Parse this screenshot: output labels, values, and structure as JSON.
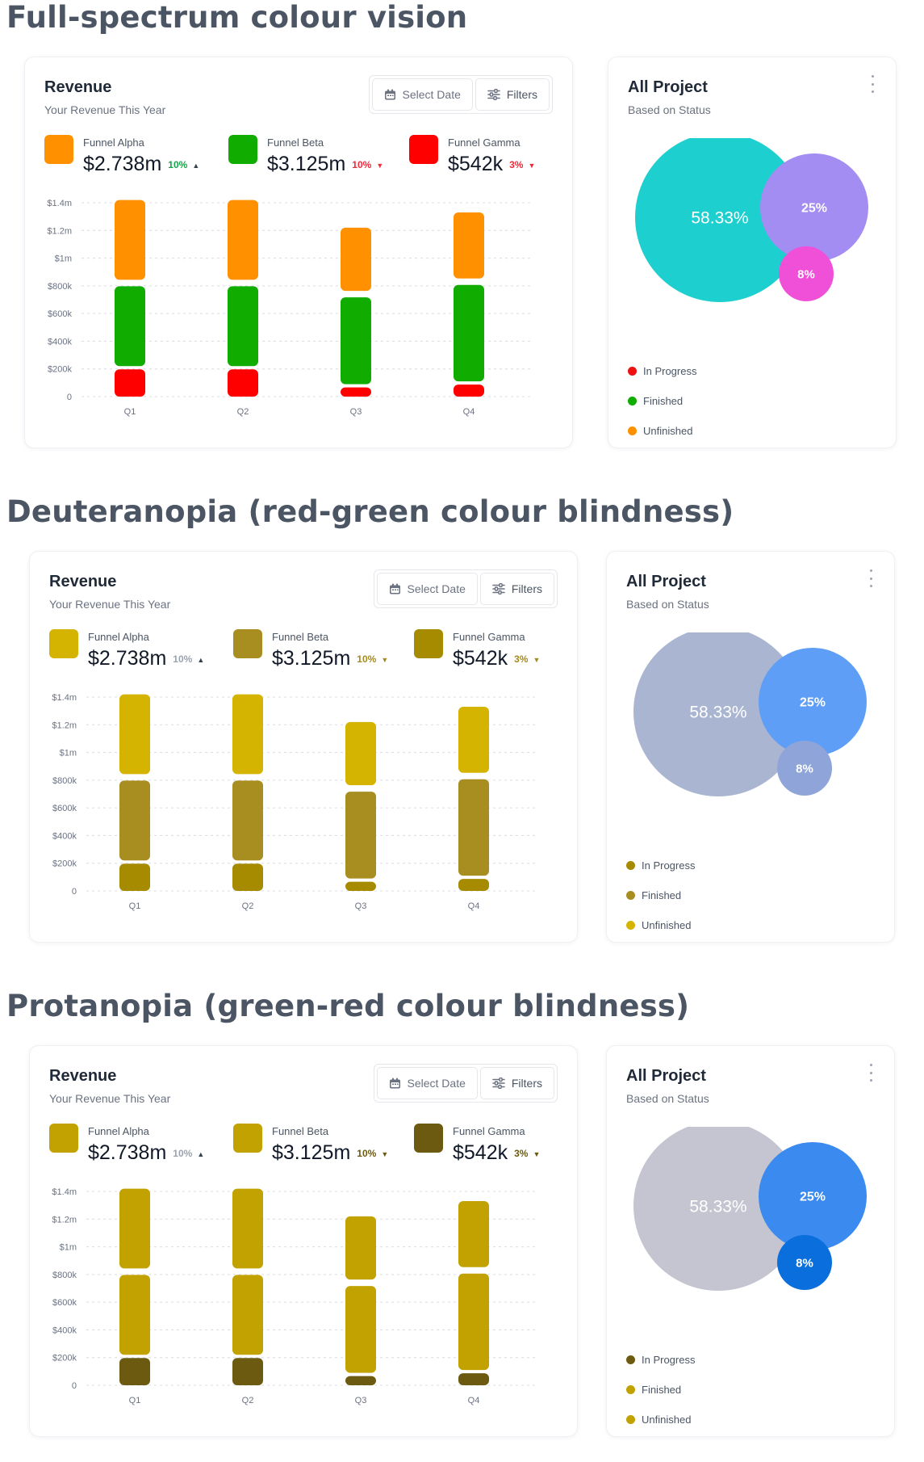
{
  "sections": [
    {
      "heading": "Full-spectrum colour vision",
      "revenue": {
        "title": "Revenue",
        "subtitle": "Your Revenue This Year",
        "select_date_label": "Select Date",
        "filters_label": "Filters",
        "funnels": [
          {
            "name": "Funnel Alpha",
            "value": "$2.738m",
            "change": "10%",
            "direction": "up",
            "change_color": "#16a34a",
            "color": "#ff9000"
          },
          {
            "name": "Funnel Beta",
            "value": "$3.125m",
            "change": "10%",
            "direction": "down",
            "change_color": "#ef2b3a",
            "color": "#10ac00"
          },
          {
            "name": "Funnel Gamma",
            "value": "$542k",
            "change": "3%",
            "direction": "down",
            "change_color": "#ef2b3a",
            "color": "#ff0000"
          }
        ]
      },
      "project": {
        "title": "All Project",
        "subtitle": "Based on Status",
        "bubbles": [
          {
            "label": "58.33%",
            "color": "#1ecfcf"
          },
          {
            "label": "25%",
            "color": "#a38cf2"
          },
          {
            "label": "8%",
            "color": "#f04fd8"
          }
        ],
        "legend": [
          {
            "label": "In Progress",
            "color": "#ee1111"
          },
          {
            "label": "Finished",
            "color": "#10ac00"
          },
          {
            "label": "Unfinished",
            "color": "#ff9000"
          }
        ]
      }
    },
    {
      "heading": "Deuteranopia (red-green colour blindness)",
      "revenue": {
        "title": "Revenue",
        "subtitle": "Your Revenue This Year",
        "select_date_label": "Select Date",
        "filters_label": "Filters",
        "funnels": [
          {
            "name": "Funnel Alpha",
            "value": "$2.738m",
            "change": "10%",
            "direction": "up",
            "change_color": "#9ca3af",
            "color": "#d4b400"
          },
          {
            "name": "Funnel Beta",
            "value": "$3.125m",
            "change": "10%",
            "direction": "down",
            "change_color": "#a38a22",
            "color": "#a88e20"
          },
          {
            "name": "Funnel Gamma",
            "value": "$542k",
            "change": "3%",
            "direction": "down",
            "change_color": "#a38a22",
            "color": "#a68a00"
          }
        ]
      },
      "project": {
        "title": "All Project",
        "subtitle": "Based on Status",
        "bubbles": [
          {
            "label": "58.33%",
            "color": "#a9b5d1"
          },
          {
            "label": "25%",
            "color": "#5f9ef6"
          },
          {
            "label": "8%",
            "color": "#8fa4d8"
          }
        ],
        "legend": [
          {
            "label": "In Progress",
            "color": "#a68a00"
          },
          {
            "label": "Finished",
            "color": "#a88e20"
          },
          {
            "label": "Unfinished",
            "color": "#d4b400"
          }
        ]
      }
    },
    {
      "heading": "Protanopia (green-red colour blindness)",
      "revenue": {
        "title": "Revenue",
        "subtitle": "Your Revenue This Year",
        "select_date_label": "Select Date",
        "filters_label": "Filters",
        "funnels": [
          {
            "name": "Funnel Alpha",
            "value": "$2.738m",
            "change": "10%",
            "direction": "up",
            "change_color": "#9ca3af",
            "color": "#c1a200"
          },
          {
            "name": "Funnel Beta",
            "value": "$3.125m",
            "change": "10%",
            "direction": "down",
            "change_color": "#6b5a10",
            "color": "#c1a200"
          },
          {
            "name": "Funnel Gamma",
            "value": "$542k",
            "change": "3%",
            "direction": "down",
            "change_color": "#6b5a10",
            "color": "#6b5a10"
          }
        ]
      },
      "project": {
        "title": "All Project",
        "subtitle": "Based on Status",
        "bubbles": [
          {
            "label": "58.33%",
            "color": "#c4c5d0"
          },
          {
            "label": "25%",
            "color": "#3a8af0"
          },
          {
            "label": "8%",
            "color": "#0a6fdc"
          }
        ],
        "legend": [
          {
            "label": "In Progress",
            "color": "#6b5a10"
          },
          {
            "label": "Finished",
            "color": "#c1a200"
          },
          {
            "label": "Unfinished",
            "color": "#c1a200"
          }
        ]
      }
    }
  ],
  "chart_data": [
    {
      "type": "bar",
      "stacked": true,
      "categories": [
        "Q1",
        "Q2",
        "Q3",
        "Q4"
      ],
      "y_tick_labels": [
        "0",
        "$200k",
        "$400k",
        "$600k",
        "$800k",
        "$1m",
        "$1.2m",
        "$1.4m"
      ],
      "ylim": [
        0,
        1400000
      ],
      "grid": true,
      "series": [
        {
          "name": "Funnel Gamma",
          "values": [
            220000,
            220000,
            90000,
            110000
          ],
          "color": "#ff0000"
        },
        {
          "name": "Funnel Beta",
          "values": [
            600000,
            600000,
            650000,
            720000
          ],
          "color": "#10ac00"
        },
        {
          "name": "Funnel Alpha",
          "values": [
            600000,
            600000,
            480000,
            500000
          ],
          "color": "#ff9000"
        }
      ]
    },
    {
      "type": "bar",
      "stacked": true,
      "categories": [
        "Q1",
        "Q2",
        "Q3",
        "Q4"
      ],
      "y_tick_labels": [
        "0",
        "$200k",
        "$400k",
        "$600k",
        "$800k",
        "$1m",
        "$1.2m",
        "$1.4m"
      ],
      "ylim": [
        0,
        1400000
      ],
      "grid": true,
      "series": [
        {
          "name": "Funnel Gamma",
          "values": [
            220000,
            220000,
            90000,
            110000
          ],
          "color": "#a68a00"
        },
        {
          "name": "Funnel Beta",
          "values": [
            600000,
            600000,
            650000,
            720000
          ],
          "color": "#a88e20"
        },
        {
          "name": "Funnel Alpha",
          "values": [
            600000,
            600000,
            480000,
            500000
          ],
          "color": "#d4b400"
        }
      ]
    },
    {
      "type": "bar",
      "stacked": true,
      "categories": [
        "Q1",
        "Q2",
        "Q3",
        "Q4"
      ],
      "y_tick_labels": [
        "0",
        "$200k",
        "$400k",
        "$600k",
        "$800k",
        "$1m",
        "$1.2m",
        "$1.4m"
      ],
      "ylim": [
        0,
        1400000
      ],
      "grid": true,
      "series": [
        {
          "name": "Funnel Gamma",
          "values": [
            220000,
            220000,
            90000,
            110000
          ],
          "color": "#6b5a10"
        },
        {
          "name": "Funnel Beta",
          "values": [
            600000,
            600000,
            650000,
            720000
          ],
          "color": "#c1a200"
        },
        {
          "name": "Funnel Alpha",
          "values": [
            600000,
            600000,
            480000,
            500000
          ],
          "color": "#c1a200"
        }
      ]
    }
  ]
}
